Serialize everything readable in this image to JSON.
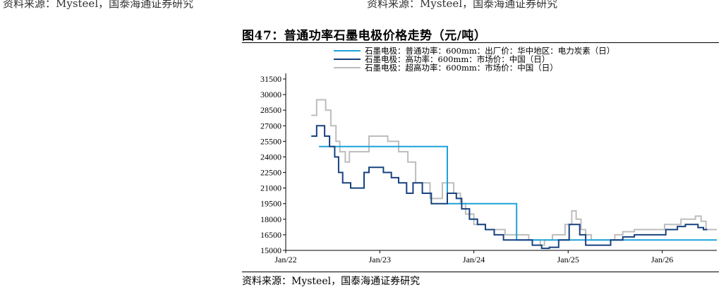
{
  "header_fragments": {
    "left": "资料来源：Mysteel，国泰海通证券研究",
    "right": "资料来源：Mysteel，国泰海通证券研究"
  },
  "figure": {
    "title": "图47：普通功率石墨电极价格走势（元/吨）",
    "source": "资料来源：Mysteel，国泰海通证券研究"
  },
  "colors": {
    "series_1": "#1BA3DB",
    "series_2": "#17427E",
    "series_3": "#BDBDBD"
  },
  "chart_data": {
    "type": "line",
    "title": "图47：普通功率石墨电极价格走势（元/吨）",
    "xlabel": "",
    "ylabel": "",
    "x_ticks": [
      "Jan/22",
      "Jan/23",
      "Jan/24",
      "Jan/25",
      "Jan/26"
    ],
    "x_range": [
      "2022-01-01",
      "2026-08-01"
    ],
    "y_ticks": [
      15000,
      16500,
      18000,
      19500,
      21000,
      22500,
      24000,
      25500,
      27000,
      28500,
      30000,
      31500
    ],
    "ylim": [
      15000,
      31500
    ],
    "grid": false,
    "legend_position": "top-center",
    "series": [
      {
        "name": "石墨电极：普通功率：600mm：出厂价：华中地区：电力炭素（日）",
        "color": "#1BA3DB",
        "points": [
          [
            "2022-05-10",
            25000
          ],
          [
            "2023-09-20",
            25000
          ],
          [
            "2023-09-20",
            19500
          ],
          [
            "2024-06-15",
            19500
          ],
          [
            "2024-06-15",
            16000
          ],
          [
            "2026-08-01",
            16000
          ]
        ]
      },
      {
        "name": "石墨电极：高功率：600mm：市场价：中国（日）",
        "color": "#17427E",
        "points": [
          [
            "2022-04-10",
            26000
          ],
          [
            "2022-05-01",
            26000
          ],
          [
            "2022-05-01",
            27000
          ],
          [
            "2022-06-01",
            27000
          ],
          [
            "2022-06-01",
            26000
          ],
          [
            "2022-06-20",
            26000
          ],
          [
            "2022-06-20",
            25000
          ],
          [
            "2022-07-10",
            25000
          ],
          [
            "2022-07-10",
            24000
          ],
          [
            "2022-07-25",
            24000
          ],
          [
            "2022-07-25",
            22500
          ],
          [
            "2022-08-10",
            22500
          ],
          [
            "2022-08-10",
            21500
          ],
          [
            "2022-09-10",
            21500
          ],
          [
            "2022-09-10",
            21000
          ],
          [
            "2022-11-01",
            21000
          ],
          [
            "2022-11-01",
            22500
          ],
          [
            "2022-11-20",
            22500
          ],
          [
            "2022-11-20",
            23000
          ],
          [
            "2023-01-15",
            23000
          ],
          [
            "2023-01-15",
            22500
          ],
          [
            "2023-02-15",
            22500
          ],
          [
            "2023-02-15",
            22000
          ],
          [
            "2023-03-15",
            22000
          ],
          [
            "2023-03-15",
            21500
          ],
          [
            "2023-04-15",
            21500
          ],
          [
            "2023-04-15",
            20500
          ],
          [
            "2023-05-10",
            20500
          ],
          [
            "2023-05-10",
            21500
          ],
          [
            "2023-06-15",
            21500
          ],
          [
            "2023-06-15",
            20500
          ],
          [
            "2023-07-20",
            20500
          ],
          [
            "2023-07-20",
            19500
          ],
          [
            "2023-09-20",
            19500
          ],
          [
            "2023-09-20",
            20500
          ],
          [
            "2023-10-25",
            20500
          ],
          [
            "2023-10-25",
            20000
          ],
          [
            "2023-11-15",
            20000
          ],
          [
            "2023-11-15",
            19000
          ],
          [
            "2023-12-15",
            19000
          ],
          [
            "2023-12-15",
            18000
          ],
          [
            "2024-01-15",
            18000
          ],
          [
            "2024-01-15",
            17500
          ],
          [
            "2024-02-15",
            17500
          ],
          [
            "2024-02-15",
            17000
          ],
          [
            "2024-03-20",
            17000
          ],
          [
            "2024-03-20",
            16500
          ],
          [
            "2024-04-25",
            16500
          ],
          [
            "2024-04-25",
            16000
          ],
          [
            "2024-08-15",
            16000
          ],
          [
            "2024-08-15",
            15500
          ],
          [
            "2024-09-20",
            15500
          ],
          [
            "2024-09-20",
            15200
          ],
          [
            "2024-10-20",
            15200
          ],
          [
            "2024-10-20",
            15300
          ],
          [
            "2024-11-25",
            15300
          ],
          [
            "2024-11-25",
            16000
          ],
          [
            "2025-01-05",
            16000
          ],
          [
            "2025-01-05",
            17500
          ],
          [
            "2025-02-15",
            17500
          ],
          [
            "2025-02-15",
            16500
          ],
          [
            "2025-03-10",
            16500
          ],
          [
            "2025-03-10",
            15500
          ],
          [
            "2025-06-15",
            15500
          ],
          [
            "2025-06-15",
            16000
          ],
          [
            "2025-08-01",
            16000
          ],
          [
            "2025-08-01",
            16300
          ],
          [
            "2025-09-15",
            16300
          ],
          [
            "2025-09-15",
            16500
          ],
          [
            "2026-01-15",
            16500
          ],
          [
            "2026-01-15",
            17000
          ],
          [
            "2026-03-01",
            17000
          ],
          [
            "2026-03-01",
            17300
          ],
          [
            "2026-04-01",
            17300
          ],
          [
            "2026-04-01",
            17500
          ],
          [
            "2026-05-20",
            17500
          ],
          [
            "2026-05-20",
            17200
          ],
          [
            "2026-06-10",
            17200
          ],
          [
            "2026-06-10",
            17000
          ],
          [
            "2026-06-25",
            17000
          ]
        ]
      },
      {
        "name": "石墨电极：超高功率：600mm：市场价：中国（日）",
        "color": "#BDBDBD",
        "points": [
          [
            "2022-04-10",
            28000
          ],
          [
            "2022-05-01",
            28000
          ],
          [
            "2022-05-01",
            29500
          ],
          [
            "2022-06-05",
            29500
          ],
          [
            "2022-06-05",
            28500
          ],
          [
            "2022-06-25",
            28500
          ],
          [
            "2022-06-25",
            27000
          ],
          [
            "2022-07-15",
            27000
          ],
          [
            "2022-07-15",
            25500
          ],
          [
            "2022-07-30",
            25500
          ],
          [
            "2022-07-30",
            24500
          ],
          [
            "2022-08-20",
            24500
          ],
          [
            "2022-08-20",
            23500
          ],
          [
            "2022-09-05",
            23500
          ],
          [
            "2022-09-05",
            24500
          ],
          [
            "2022-11-20",
            24500
          ],
          [
            "2022-11-20",
            26000
          ],
          [
            "2023-02-01",
            26000
          ],
          [
            "2023-02-01",
            25500
          ],
          [
            "2023-03-15",
            25500
          ],
          [
            "2023-03-15",
            24500
          ],
          [
            "2023-04-20",
            24500
          ],
          [
            "2023-04-20",
            23500
          ],
          [
            "2023-05-20",
            23500
          ],
          [
            "2023-05-20",
            21500
          ],
          [
            "2023-07-15",
            21500
          ],
          [
            "2023-07-15",
            20000
          ],
          [
            "2023-09-01",
            20000
          ],
          [
            "2023-09-01",
            21500
          ],
          [
            "2023-10-15",
            21500
          ],
          [
            "2023-10-15",
            20500
          ],
          [
            "2023-11-10",
            20500
          ],
          [
            "2023-11-10",
            19500
          ],
          [
            "2023-11-30",
            19500
          ],
          [
            "2023-11-30",
            18500
          ],
          [
            "2024-01-01",
            18500
          ],
          [
            "2024-01-01",
            17500
          ],
          [
            "2024-02-15",
            17500
          ],
          [
            "2024-02-15",
            17000
          ],
          [
            "2024-05-01",
            17000
          ],
          [
            "2024-05-01",
            16500
          ],
          [
            "2024-08-01",
            16500
          ],
          [
            "2024-08-01",
            16000
          ],
          [
            "2024-09-15",
            16000
          ],
          [
            "2024-09-15",
            15500
          ],
          [
            "2024-10-01",
            15500
          ],
          [
            "2024-10-01",
            16000
          ],
          [
            "2024-11-01",
            16000
          ],
          [
            "2024-11-01",
            16500
          ],
          [
            "2024-12-20",
            16500
          ],
          [
            "2024-12-20",
            17500
          ],
          [
            "2025-01-15",
            17500
          ],
          [
            "2025-01-15",
            18800
          ],
          [
            "2025-02-01",
            18800
          ],
          [
            "2025-02-01",
            18000
          ],
          [
            "2025-02-20",
            18000
          ],
          [
            "2025-02-20",
            17000
          ],
          [
            "2025-03-10",
            17000
          ],
          [
            "2025-03-10",
            16500
          ],
          [
            "2025-04-01",
            16500
          ],
          [
            "2025-04-01",
            16000
          ],
          [
            "2025-07-01",
            16000
          ],
          [
            "2025-07-01",
            16500
          ],
          [
            "2025-08-01",
            16500
          ],
          [
            "2025-08-01",
            16800
          ],
          [
            "2025-09-15",
            16800
          ],
          [
            "2025-09-15",
            17000
          ],
          [
            "2026-01-10",
            17000
          ],
          [
            "2026-01-10",
            17500
          ],
          [
            "2026-03-15",
            17500
          ],
          [
            "2026-03-15",
            18000
          ],
          [
            "2026-05-10",
            18000
          ],
          [
            "2026-05-10",
            18300
          ],
          [
            "2026-06-01",
            18300
          ],
          [
            "2026-06-01",
            17800
          ],
          [
            "2026-06-20",
            17800
          ],
          [
            "2026-06-20",
            17000
          ],
          [
            "2026-08-01",
            17000
          ]
        ]
      }
    ]
  }
}
